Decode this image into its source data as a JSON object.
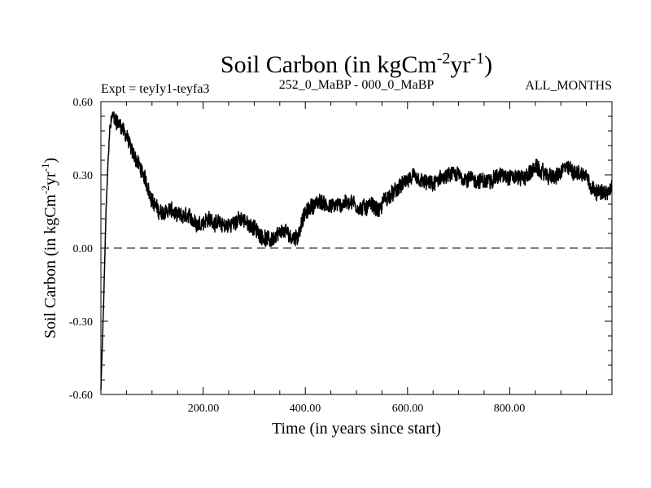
{
  "chart_data": {
    "type": "line",
    "title": {
      "main": "Soil Carbon (in kgCm",
      "sup1": "-2",
      "mid": "yr",
      "sup2": "-1",
      "end": ")"
    },
    "header_left": "Expt = teyIy1-teyfa3",
    "header_center": "252_0_MaBP - 000_0_MaBP",
    "header_right": "ALL_MONTHS",
    "xlabel": "Time (in years since start)",
    "ylabel": {
      "main": "Soil Carbon (in kgCm",
      "sup1": "-2",
      "mid": "yr",
      "sup2": "-1",
      "end": ")"
    },
    "xlim": [
      0,
      1000
    ],
    "ylim": [
      -0.6,
      0.6
    ],
    "xticks_major": [
      200,
      400,
      600,
      800
    ],
    "xtick_labels": [
      "200.00",
      "400.00",
      "600.00",
      "800.00"
    ],
    "yticks_major": [
      -0.6,
      -0.3,
      0.0,
      0.3,
      0.6
    ],
    "ytick_labels": [
      "-0.60",
      "-0.30",
      "0.00",
      "0.30",
      "0.60"
    ],
    "reference_line": {
      "y": 0.0,
      "style": "dashed"
    },
    "series": [
      {
        "name": "Soil Carbon",
        "color": "#000000",
        "noise_amplitude": 0.035,
        "anchors": [
          [
            0,
            -0.58
          ],
          [
            5,
            -0.25
          ],
          [
            10,
            0.15
          ],
          [
            16,
            0.46
          ],
          [
            22,
            0.54
          ],
          [
            30,
            0.52
          ],
          [
            40,
            0.5
          ],
          [
            50,
            0.46
          ],
          [
            60,
            0.4
          ],
          [
            75,
            0.34
          ],
          [
            90,
            0.26
          ],
          [
            100,
            0.2
          ],
          [
            110,
            0.16
          ],
          [
            120,
            0.14
          ],
          [
            135,
            0.16
          ],
          [
            150,
            0.13
          ],
          [
            170,
            0.13
          ],
          [
            190,
            0.1
          ],
          [
            210,
            0.12
          ],
          [
            230,
            0.1
          ],
          [
            250,
            0.09
          ],
          [
            270,
            0.12
          ],
          [
            290,
            0.1
          ],
          [
            310,
            0.06
          ],
          [
            330,
            0.03
          ],
          [
            345,
            0.05
          ],
          [
            360,
            0.07
          ],
          [
            375,
            0.04
          ],
          [
            385,
            0.05
          ],
          [
            395,
            0.12
          ],
          [
            410,
            0.17
          ],
          [
            430,
            0.19
          ],
          [
            450,
            0.17
          ],
          [
            470,
            0.18
          ],
          [
            490,
            0.19
          ],
          [
            510,
            0.16
          ],
          [
            530,
            0.18
          ],
          [
            545,
            0.15
          ],
          [
            555,
            0.2
          ],
          [
            570,
            0.22
          ],
          [
            590,
            0.26
          ],
          [
            610,
            0.29
          ],
          [
            630,
            0.27
          ],
          [
            650,
            0.26
          ],
          [
            670,
            0.29
          ],
          [
            690,
            0.3
          ],
          [
            710,
            0.29
          ],
          [
            730,
            0.28
          ],
          [
            750,
            0.27
          ],
          [
            770,
            0.29
          ],
          [
            790,
            0.3
          ],
          [
            810,
            0.29
          ],
          [
            830,
            0.29
          ],
          [
            850,
            0.33
          ],
          [
            870,
            0.3
          ],
          [
            890,
            0.29
          ],
          [
            910,
            0.33
          ],
          [
            930,
            0.31
          ],
          [
            950,
            0.3
          ],
          [
            960,
            0.25
          ],
          [
            975,
            0.23
          ],
          [
            990,
            0.22
          ],
          [
            1000,
            0.25
          ]
        ]
      }
    ]
  }
}
